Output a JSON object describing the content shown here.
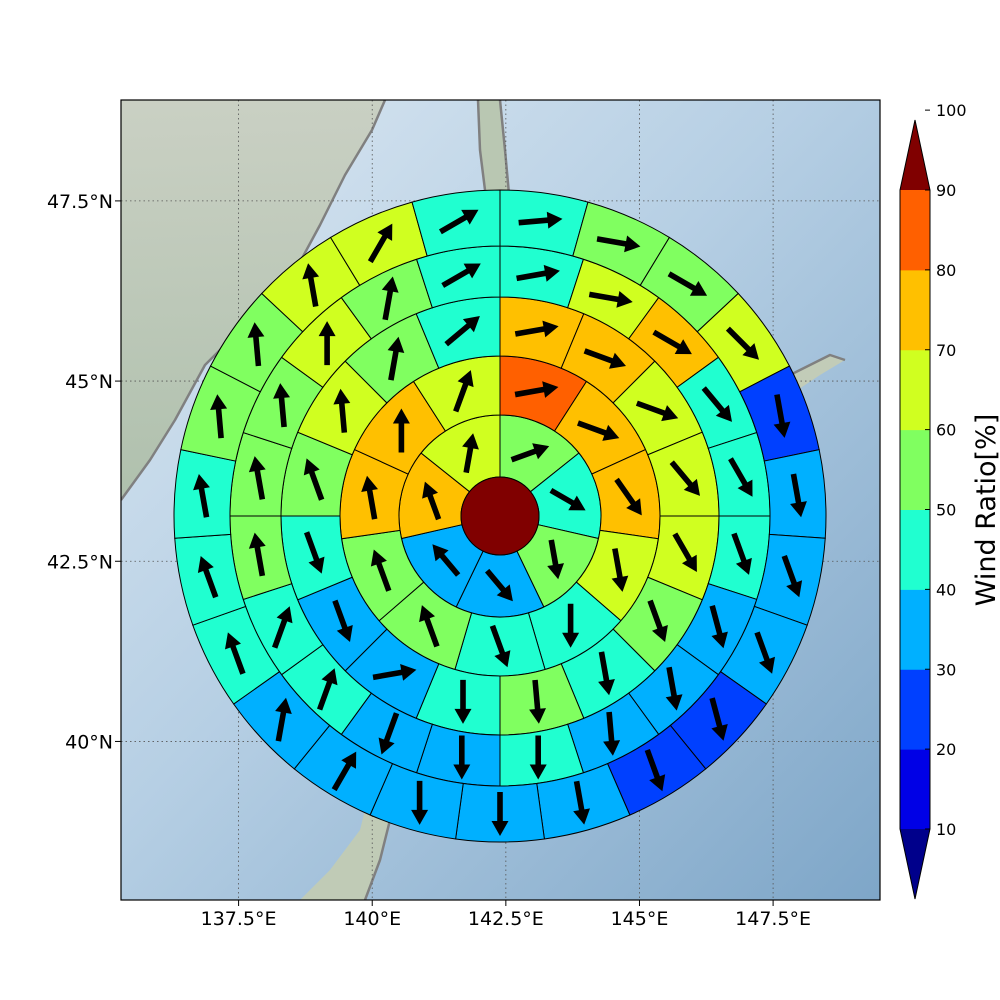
{
  "chart_data": {
    "type": "heatmap",
    "subtype": "polar-sector map with wind vectors",
    "title": "",
    "map": {
      "lon_range": [
        135.3,
        149.5
      ],
      "lat_range": [
        37.8,
        48.9
      ],
      "x_ticks": [
        "137.5°E",
        "140°E",
        "142.5°E",
        "145°E",
        "147.5°E"
      ],
      "x_tick_values": [
        137.5,
        140,
        142.5,
        145,
        147.5
      ],
      "y_ticks": [
        "47.5°N",
        "45°N",
        "42.5°N",
        "40°N"
      ],
      "y_tick_values": [
        47.5,
        45,
        42.5,
        40
      ],
      "grid": "dotted"
    },
    "colorbar": {
      "label": "Wind Ratio[%]",
      "levels": [
        0,
        10,
        20,
        30,
        40,
        50,
        60,
        70,
        80,
        90,
        100
      ],
      "tick_labels": [
        "10",
        "20",
        "30",
        "40",
        "50",
        "60",
        "70",
        "80",
        "90",
        "100"
      ],
      "colors": [
        "#00008b",
        "#0000e6",
        "#0040ff",
        "#00b0ff",
        "#20ffd0",
        "#80ff60",
        "#d0ff20",
        "#ffc000",
        "#ff6000",
        "#ff1000",
        "#800000"
      ],
      "extend": "both"
    },
    "center": {
      "value": 100
    },
    "direction_convention": "degrees clockwise from north",
    "rings": [
      {
        "ring": 1,
        "sectors": [
          {
            "value": 55,
            "dir": 70
          },
          {
            "value": 45,
            "dir": 120
          },
          {
            "value": 55,
            "dir": 170
          },
          {
            "value": 35,
            "dir": 140
          },
          {
            "value": 35,
            "dir": 320
          },
          {
            "value": 75,
            "dir": 340
          },
          {
            "value": 65,
            "dir": 10
          }
        ]
      },
      {
        "ring": 2,
        "sectors": [
          {
            "value": 85,
            "dir": 80
          },
          {
            "value": 75,
            "dir": 110
          },
          {
            "value": 75,
            "dir": 145
          },
          {
            "value": 65,
            "dir": 170
          },
          {
            "value": 45,
            "dir": 180
          },
          {
            "value": 45,
            "dir": 160
          },
          {
            "value": 55,
            "dir": 340
          },
          {
            "value": 55,
            "dir": 340
          },
          {
            "value": 75,
            "dir": 350
          },
          {
            "value": 75,
            "dir": 0
          },
          {
            "value": 65,
            "dir": 20
          }
        ]
      },
      {
        "ring": 3,
        "sectors": [
          {
            "value": 75,
            "dir": 80
          },
          {
            "value": 75,
            "dir": 110
          },
          {
            "value": 65,
            "dir": 110
          },
          {
            "value": 65,
            "dir": 140
          },
          {
            "value": 65,
            "dir": 150
          },
          {
            "value": 55,
            "dir": 160
          },
          {
            "value": 45,
            "dir": 170
          },
          {
            "value": 55,
            "dir": 175
          },
          {
            "value": 45,
            "dir": 180
          },
          {
            "value": 35,
            "dir": 80
          },
          {
            "value": 35,
            "dir": 160
          },
          {
            "value": 45,
            "dir": 160
          },
          {
            "value": 55,
            "dir": 340
          },
          {
            "value": 65,
            "dir": 355
          },
          {
            "value": 55,
            "dir": 10
          },
          {
            "value": 45,
            "dir": 50
          }
        ]
      },
      {
        "ring": 4,
        "sectors": [
          {
            "value": 45,
            "dir": 80
          },
          {
            "value": 65,
            "dir": 100
          },
          {
            "value": 75,
            "dir": 120
          },
          {
            "value": 45,
            "dir": 140
          },
          {
            "value": 45,
            "dir": 150
          },
          {
            "value": 45,
            "dir": 160
          },
          {
            "value": 35,
            "dir": 165
          },
          {
            "value": 35,
            "dir": 170
          },
          {
            "value": 35,
            "dir": 175
          },
          {
            "value": 45,
            "dir": 180
          },
          {
            "value": 35,
            "dir": 180
          },
          {
            "value": 35,
            "dir": 200
          },
          {
            "value": 45,
            "dir": 20
          },
          {
            "value": 45,
            "dir": 20
          },
          {
            "value": 55,
            "dir": 350
          },
          {
            "value": 55,
            "dir": 350
          },
          {
            "value": 55,
            "dir": 355
          },
          {
            "value": 65,
            "dir": 0
          },
          {
            "value": 55,
            "dir": 10
          },
          {
            "value": 45,
            "dir": 60
          }
        ]
      },
      {
        "ring": 5,
        "sectors": [
          {
            "value": 45,
            "dir": 85
          },
          {
            "value": 55,
            "dir": 100
          },
          {
            "value": 55,
            "dir": 120
          },
          {
            "value": 65,
            "dir": 135
          },
          {
            "value": 25,
            "dir": 170
          },
          {
            "value": 35,
            "dir": 170
          },
          {
            "value": 35,
            "dir": 160
          },
          {
            "value": 35,
            "dir": 160
          },
          {
            "value": 25,
            "dir": 165
          },
          {
            "value": 25,
            "dir": 160
          },
          {
            "value": 35,
            "dir": 170
          },
          {
            "value": 35,
            "dir": 180
          },
          {
            "value": 35,
            "dir": 180
          },
          {
            "value": 35,
            "dir": 30
          },
          {
            "value": 35,
            "dir": 10
          },
          {
            "value": 45,
            "dir": 340
          },
          {
            "value": 45,
            "dir": 340
          },
          {
            "value": 45,
            "dir": 350
          },
          {
            "value": 55,
            "dir": 355
          },
          {
            "value": 55,
            "dir": 355
          },
          {
            "value": 65,
            "dir": 350
          },
          {
            "value": 65,
            "dir": 30
          },
          {
            "value": 45,
            "dir": 60
          }
        ]
      }
    ]
  }
}
